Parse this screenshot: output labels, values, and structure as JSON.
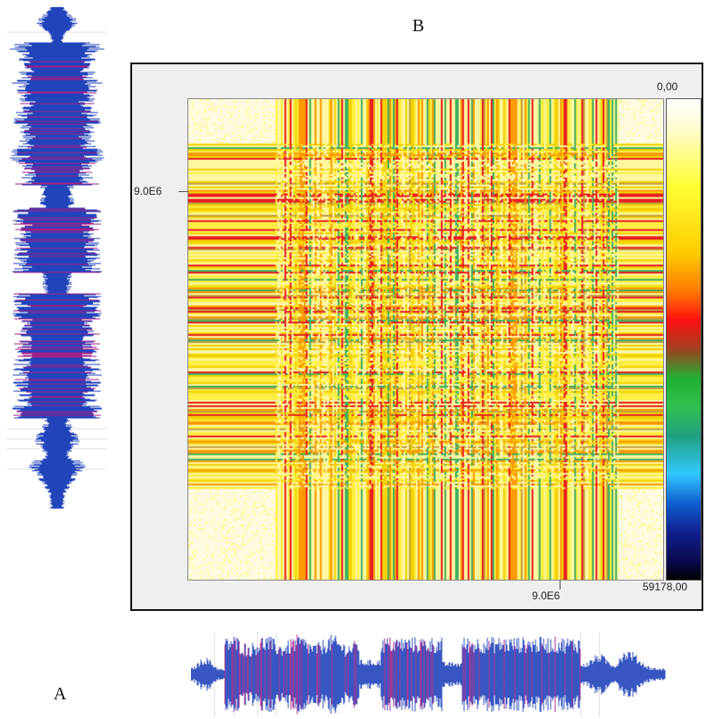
{
  "panel_labels": {
    "a": "A",
    "b": "B"
  },
  "chart_data": {
    "type": "heatmap",
    "title": "",
    "xlabel": "",
    "ylabel": "",
    "x_tick_labels": [
      "9.0E6"
    ],
    "y_tick_labels": [
      "9.0E6"
    ],
    "colorbar": {
      "max_label": "0,00",
      "min_label": "59178,00",
      "colors_top_to_bottom": [
        "#ffffff",
        "#ffff33",
        "#ffcc00",
        "#ff7a00",
        "#ff1010",
        "#a04020",
        "#20b030",
        "#20a080",
        "#30c8ff",
        "#1060d0",
        "#102090",
        "#000000"
      ]
    },
    "waveform_color": "#2244bb",
    "waveform_peak_color": "#a0208a",
    "recurrence_palette": [
      "#fffbe0",
      "#fff7a0",
      "#ffee44",
      "#f2d200",
      "#ff9a00",
      "#e82020",
      "#c0a040",
      "#40b060"
    ]
  }
}
